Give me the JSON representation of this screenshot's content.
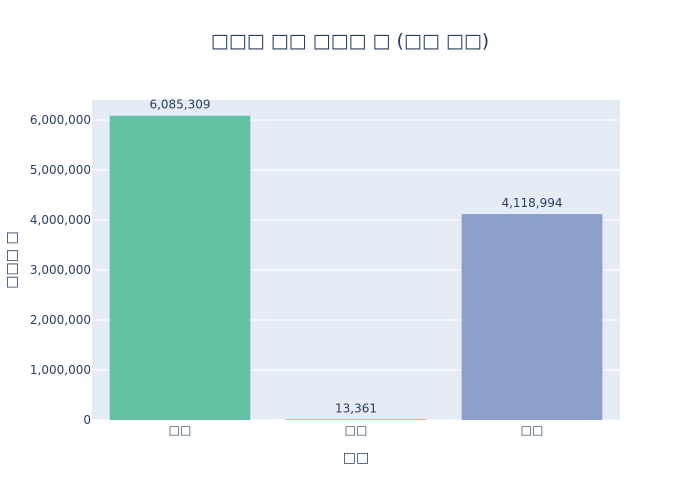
{
  "chart_data": {
    "type": "bar",
    "title": "□□□ □□ □□□ □ (□□ □□)",
    "xlabel": "□□",
    "ylabel": "□□□ □",
    "categories": [
      "□□",
      "□□",
      "□□"
    ],
    "values": [
      6085309,
      13361,
      4118994
    ],
    "value_labels": [
      "6,085,309",
      "13,361",
      "4,118,994"
    ],
    "ylim": [
      0,
      6400000
    ],
    "yticks": [
      0,
      1000000,
      2000000,
      3000000,
      4000000,
      5000000,
      6000000
    ],
    "ytick_labels": [
      "0",
      "1,000,000",
      "2,000,000",
      "3,000,000",
      "4,000,000",
      "5,000,000",
      "6,000,000"
    ],
    "colors": [
      "#66c2a5",
      "#fc8d62",
      "#8da0cb"
    ],
    "grid": true,
    "plot_background": "#e5ecf6"
  }
}
